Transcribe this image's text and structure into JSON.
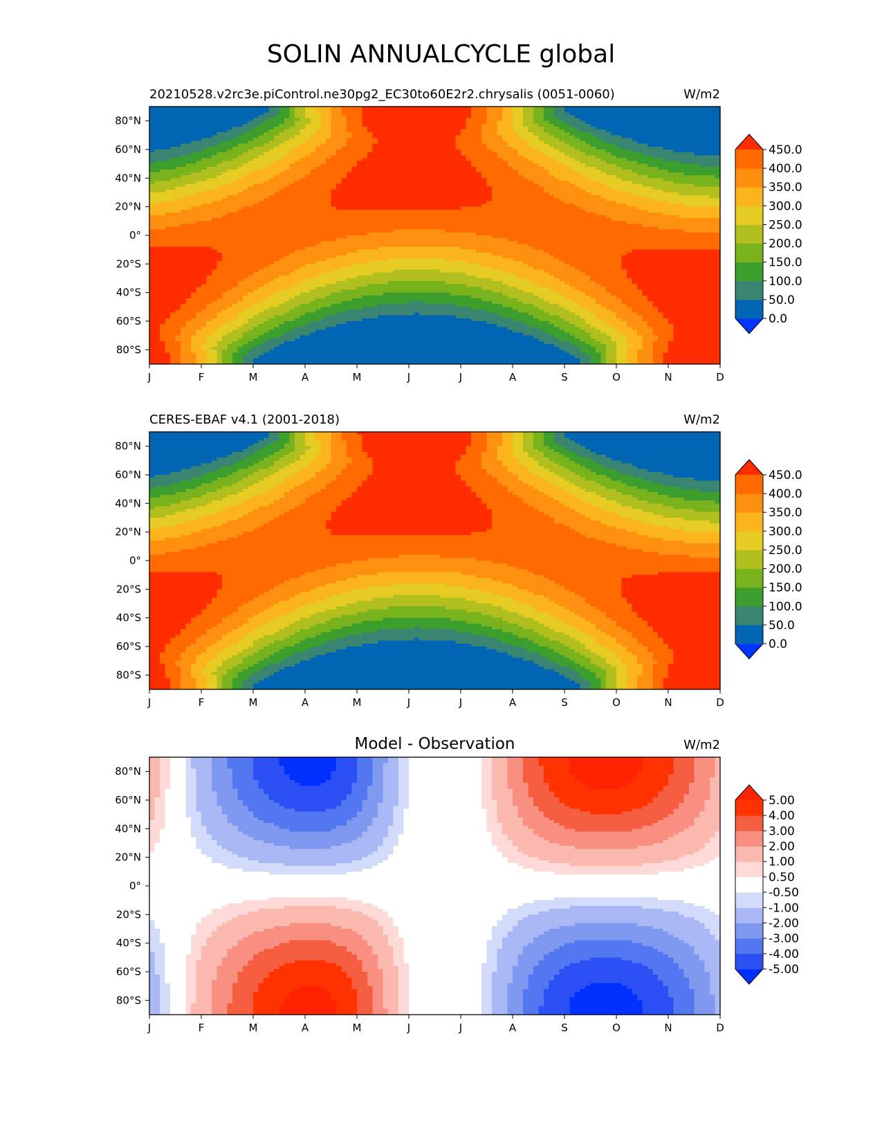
{
  "figure": {
    "suptitle": "SOLIN ANNUALCYCLE global"
  },
  "chart_data": [
    {
      "type": "heatmap",
      "title_left": "20210528.v2rc3e.piControl.ne30pg2_EC30to60E2r2.chrysalis (0051-0060)",
      "title_center": "",
      "title_right": "W/m2",
      "x_tick_labels": [
        "J",
        "F",
        "M",
        "A",
        "M",
        "J",
        "J",
        "A",
        "S",
        "O",
        "N",
        "D"
      ],
      "y_tick_labels": [
        "80°N",
        "60°N",
        "40°N",
        "20°N",
        "0°",
        "20°S",
        "40°S",
        "60°S",
        "80°S"
      ],
      "y_tick_values": [
        80,
        60,
        40,
        20,
        0,
        -20,
        -40,
        -60,
        -80
      ],
      "xlim": [
        1,
        12
      ],
      "ylim": [
        -90,
        90
      ],
      "colorbar": {
        "levels": [
          0,
          50,
          100,
          150,
          200,
          250,
          300,
          350,
          400,
          450
        ],
        "tick_labels": [
          "0.0",
          "50.0",
          "100.0",
          "150.0",
          "200.0",
          "250.0",
          "300.0",
          "350.0",
          "400.0",
          "450.0"
        ],
        "colors": [
          "#0034ff",
          "#0066b4",
          "#3a8472",
          "#3c9e2d",
          "#78b31e",
          "#b0bf1e",
          "#e6cc22",
          "#fbb41c",
          "#ff8f0f",
          "#ff6a00",
          "#ff2c00"
        ],
        "extend": "both"
      },
      "field": "model"
    },
    {
      "type": "heatmap",
      "title_left": "CERES-EBAF v4.1 (2001-2018)",
      "title_center": "",
      "title_right": "W/m2",
      "x_tick_labels": [
        "J",
        "F",
        "M",
        "A",
        "M",
        "J",
        "J",
        "A",
        "S",
        "O",
        "N",
        "D"
      ],
      "y_tick_labels": [
        "80°N",
        "60°N",
        "40°N",
        "20°N",
        "0°",
        "20°S",
        "40°S",
        "60°S",
        "80°S"
      ],
      "y_tick_values": [
        80,
        60,
        40,
        20,
        0,
        -20,
        -40,
        -60,
        -80
      ],
      "xlim": [
        1,
        12
      ],
      "ylim": [
        -90,
        90
      ],
      "colorbar": {
        "levels": [
          0,
          50,
          100,
          150,
          200,
          250,
          300,
          350,
          400,
          450
        ],
        "tick_labels": [
          "0.0",
          "50.0",
          "100.0",
          "150.0",
          "200.0",
          "250.0",
          "300.0",
          "350.0",
          "400.0",
          "450.0"
        ],
        "colors": [
          "#0034ff",
          "#0066b4",
          "#3a8472",
          "#3c9e2d",
          "#78b31e",
          "#b0bf1e",
          "#e6cc22",
          "#fbb41c",
          "#ff8f0f",
          "#ff6a00",
          "#ff2c00"
        ],
        "extend": "both"
      },
      "field": "obs"
    },
    {
      "type": "heatmap",
      "title_left": "",
      "title_center": "Model - Observation",
      "title_right": "W/m2",
      "x_tick_labels": [
        "J",
        "F",
        "M",
        "A",
        "M",
        "J",
        "J",
        "A",
        "S",
        "O",
        "N",
        "D"
      ],
      "y_tick_labels": [
        "80°N",
        "60°N",
        "40°N",
        "20°N",
        "0°",
        "20°S",
        "40°S",
        "60°S",
        "80°S"
      ],
      "y_tick_values": [
        80,
        60,
        40,
        20,
        0,
        -20,
        -40,
        -60,
        -80
      ],
      "xlim": [
        1,
        12
      ],
      "ylim": [
        -90,
        90
      ],
      "colorbar": {
        "levels": [
          -5,
          -4,
          -3,
          -2,
          -1,
          -0.5,
          0.5,
          1,
          2,
          3,
          4,
          5
        ],
        "tick_labels": [
          "-5.00",
          "-4.00",
          "-3.00",
          "-2.00",
          "-1.00",
          "-0.50",
          "0.50",
          "1.00",
          "2.00",
          "3.00",
          "4.00",
          "5.00"
        ],
        "colors": [
          "#0030ff",
          "#2a50f4",
          "#5277f0",
          "#7f99f1",
          "#a9b8f5",
          "#d2dbfa",
          "#ffffff",
          "#fddad7",
          "#fbb8ae",
          "#f98f80",
          "#f55d40",
          "#ff3200",
          "#ff2200"
        ],
        "extend": "both"
      },
      "field": "diff"
    }
  ]
}
